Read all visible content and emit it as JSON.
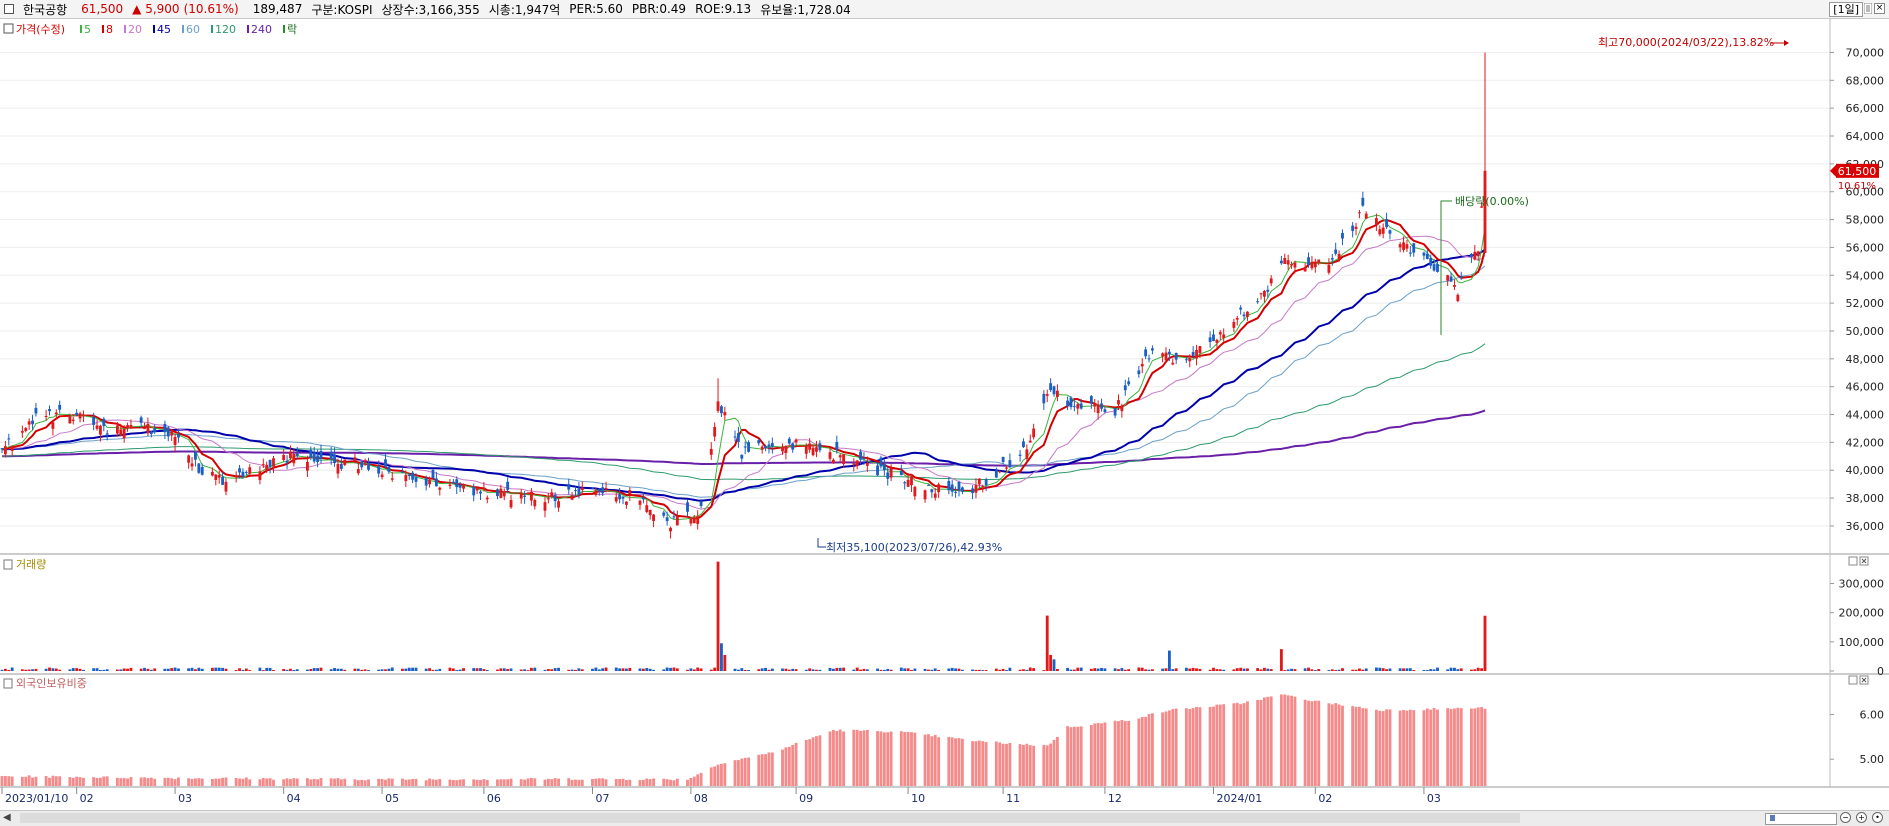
{
  "header": {
    "name": "한국공항",
    "price": "61,500",
    "change": "▲ 5,900",
    "change_pct": "(10.61%)",
    "volume": "189,487",
    "market": "구분:KOSPI",
    "shares": "상장수:3,166,355",
    "mktcap": "시총:1,947억",
    "per": "PER:5.60",
    "pbr": "PBR:0.49",
    "roe": "ROE:9.13",
    "float": "유보율:1,728.04",
    "period": "[1일]",
    "close_glyph": "×"
  },
  "legend": {
    "price_label": "가격(수정)",
    "ma": [
      "5",
      "8",
      "20",
      "45",
      "60",
      "120",
      "240"
    ],
    "drop_label": "락"
  },
  "colors": {
    "up": "#e0191b",
    "down": "#1a5fc4",
    "ma5": "#3cb43c",
    "ma8": "#d40000",
    "ma20": "#c878c8",
    "ma45": "#0000aa",
    "ma60": "#6ba0c8",
    "ma120": "#2d9a6c",
    "ma240": "#6a1fa8",
    "foreign": "#f48a8a"
  },
  "annotations": {
    "high": "최고70,000(2024/03/22),13.82%",
    "low": "최저35,100(2023/07/26),42.93%",
    "dividend": "배당락(0.00%)",
    "last_price": "61,500",
    "last_pct": "10.61%"
  },
  "panels": {
    "volume_title": "거래량",
    "foreign_title": "외국인보유비중"
  },
  "chart_data": [
    {
      "type": "candlestick",
      "title": "",
      "x_tick_labels": [
        "2023/01/10",
        "02",
        "03",
        "04",
        "05",
        "06",
        "07",
        "08",
        "09",
        "10",
        "11",
        "12",
        "2024/01",
        "02",
        "03"
      ],
      "y_ticks": [
        36000,
        38000,
        40000,
        42000,
        44000,
        46000,
        48000,
        50000,
        52000,
        54000,
        56000,
        58000,
        60000,
        62000,
        64000,
        66000,
        68000,
        70000
      ],
      "y_tick_labels": [
        "36,000",
        "38,000",
        "40,000",
        "42,000",
        "44,000",
        "46,000",
        "48,000",
        "50,000",
        "52,000",
        "54,000",
        "56,000",
        "58,000",
        "60,000",
        "62,000",
        "64,000",
        "66,000",
        "68,000",
        "70,000"
      ],
      "ylim": [
        34200,
        71900
      ],
      "price_anchors": {
        "dates": [
          "2023-01-10",
          "2023-01-20",
          "2023-02-01",
          "2023-02-10",
          "2023-02-20",
          "2023-03-02",
          "2023-03-09",
          "2023-03-16",
          "2023-03-23",
          "2023-04-03",
          "2023-04-14",
          "2023-04-25",
          "2023-05-03",
          "2023-05-15",
          "2023-05-26",
          "2023-06-07",
          "2023-06-20",
          "2023-07-03",
          "2023-07-17",
          "2023-07-26",
          "2023-08-04",
          "2023-08-09",
          "2023-08-16",
          "2023-08-29",
          "2023-09-12",
          "2023-09-26",
          "2023-10-10",
          "2023-10-20",
          "2023-11-01",
          "2023-11-08",
          "2023-11-14",
          "2023-11-22",
          "2023-12-04",
          "2023-12-14",
          "2023-12-26",
          "2024-01-05",
          "2024-01-16",
          "2024-01-24",
          "2024-02-05",
          "2024-02-15",
          "2024-02-23",
          "2024-03-05",
          "2024-03-14",
          "2024-03-20",
          "2024-03-22"
        ],
        "closes": [
          41500,
          43800,
          44000,
          42800,
          43000,
          42500,
          40200,
          39200,
          39800,
          41000,
          40600,
          40500,
          40000,
          39200,
          38600,
          38200,
          38100,
          38400,
          38100,
          36200,
          37100,
          44800,
          41200,
          42000,
          41200,
          40000,
          38700,
          38200,
          40200,
          41500,
          45800,
          44800,
          44300,
          48200,
          48000,
          50000,
          52500,
          55200,
          54600,
          58600,
          57200,
          55000,
          53000,
          55900,
          61500
        ]
      },
      "ma_last": {
        "ma5": 54800,
        "ma20": 55200,
        "ma45": 55200,
        "ma60": 54600,
        "ma120": 48200,
        "ma240": 43700
      },
      "high": {
        "value": 70000,
        "date": "2024/03/22"
      },
      "low": {
        "value": 35100,
        "date": "2023/07/26"
      },
      "last_close": 61500
    },
    {
      "type": "bar",
      "title": "거래량",
      "y_ticks": [
        0,
        100000,
        200000,
        300000
      ],
      "y_tick_labels": [
        "0",
        "100,000",
        "200,000",
        "300,000"
      ],
      "ylim": [
        0,
        360000
      ],
      "spikes": [
        {
          "date": "2023-08-09",
          "value": 375000
        },
        {
          "date": "2023-08-10",
          "value": 95000
        },
        {
          "date": "2023-08-11",
          "value": 55000
        },
        {
          "date": "2023-11-14",
          "value": 190000
        },
        {
          "date": "2023-11-15",
          "value": 55000
        },
        {
          "date": "2023-11-16",
          "value": 40000
        },
        {
          "date": "2023-12-20",
          "value": 70000
        },
        {
          "date": "2024-01-22",
          "value": 75000
        },
        {
          "date": "2024-03-22",
          "value": 189487
        }
      ]
    },
    {
      "type": "bar",
      "title": "외국인보유비중",
      "y_ticks": [
        5.0,
        6.0
      ],
      "y_tick_labels": [
        "5.00",
        "6.00"
      ],
      "ylim": [
        4.4,
        6.55
      ],
      "ratio_anchors": {
        "dates": [
          "2023-01-10",
          "2023-03-01",
          "2023-05-01",
          "2023-07-01",
          "2023-07-31",
          "2023-08-10",
          "2023-08-25",
          "2023-09-12",
          "2023-10-01",
          "2023-10-25",
          "2023-11-14",
          "2023-11-20",
          "2023-12-08",
          "2023-12-20",
          "2024-01-10",
          "2024-01-22",
          "2024-02-01",
          "2024-02-20",
          "2024-03-22"
        ],
        "values": [
          4.62,
          4.58,
          4.55,
          4.56,
          4.55,
          4.92,
          5.15,
          5.65,
          5.62,
          5.4,
          5.3,
          5.72,
          5.88,
          6.1,
          6.25,
          6.45,
          6.3,
          6.1,
          6.15
        ]
      }
    }
  ]
}
